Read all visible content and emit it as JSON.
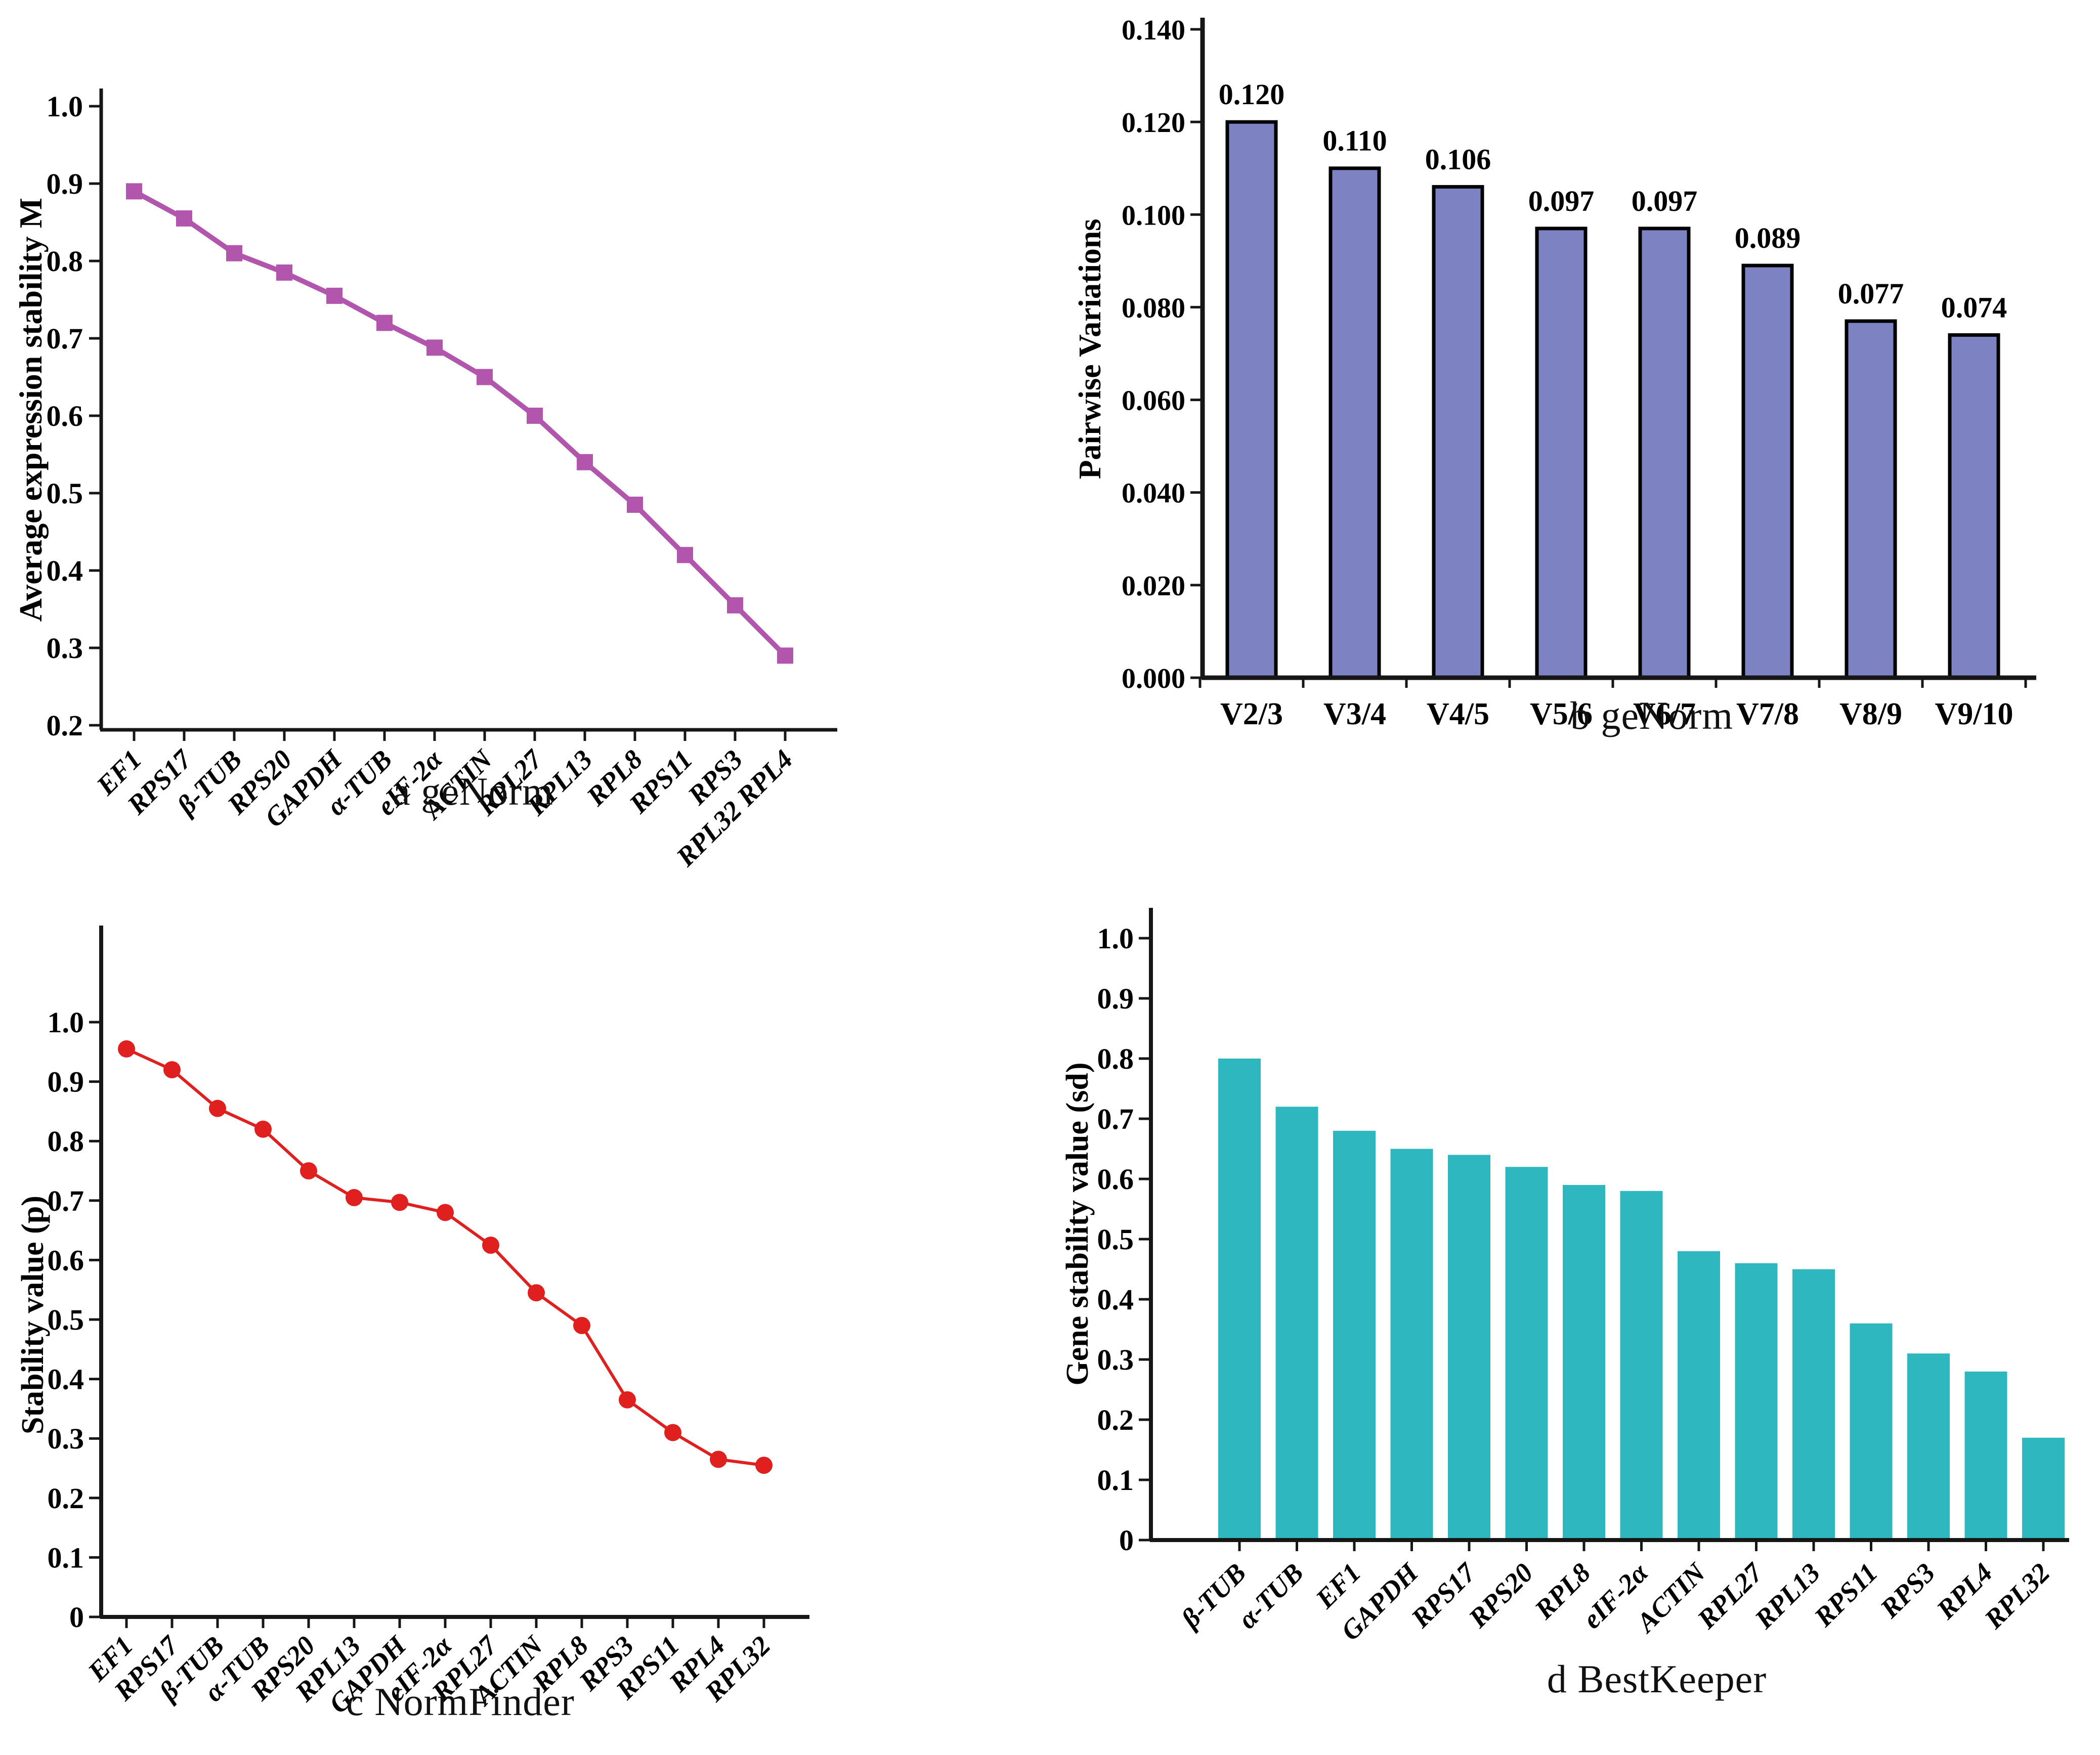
{
  "figure": {
    "background_color": "#ffffff",
    "text_color": "#000000"
  },
  "chart_data": [
    {
      "id": "a",
      "type": "line",
      "caption": "a geNorm",
      "ylabel": "Average expression stability M",
      "xlabel": "",
      "color": "#b156ac",
      "marker": "square",
      "ylim": [
        0.2,
        1.0
      ],
      "grid": false,
      "legend": "none",
      "ytick_values": [
        0.2,
        0.3,
        0.4,
        0.5,
        0.6,
        0.7,
        0.8,
        0.9,
        1.0
      ],
      "ytick_labels": [
        "0.2",
        "0.3",
        "0.4",
        "0.5",
        "0.6",
        "0.7",
        "0.8",
        "0.9",
        "1.0"
      ],
      "categories": [
        "EF1",
        "RPS17",
        "β-TUB",
        "RPS20",
        "GAPDH",
        "α-TUB",
        "eIF-2α",
        "ACTIN",
        "RPL27",
        "RPL13",
        "RPL8",
        "RPS11",
        "RPS3",
        "RPL32 RPL4"
      ],
      "values": [
        0.89,
        0.855,
        0.81,
        0.785,
        0.755,
        0.72,
        0.688,
        0.65,
        0.6,
        0.54,
        0.485,
        0.42,
        0.355,
        0.29
      ]
    },
    {
      "id": "b",
      "type": "bar",
      "caption": "b geNorm",
      "ylabel": "Pairwise Variations",
      "xlabel": "",
      "color": "#7d82c3",
      "bar_stroke": "#000000",
      "ylim": [
        0,
        0.14
      ],
      "grid": false,
      "legend": "none",
      "ytick_values": [
        0.0,
        0.02,
        0.04,
        0.06,
        0.08,
        0.1,
        0.12,
        0.14
      ],
      "ytick_labels": [
        "0.000",
        "0.020",
        "0.040",
        "0.060",
        "0.080",
        "0.100",
        "0.120",
        "0.140"
      ],
      "categories": [
        "V2/3",
        "V3/4",
        "V4/5",
        "V5/6",
        "V6/7",
        "V7/8",
        "V8/9",
        "V9/10"
      ],
      "values": [
        0.12,
        0.11,
        0.106,
        0.097,
        0.097,
        0.089,
        0.077,
        0.074
      ],
      "value_labels": [
        "0.120",
        "0.110",
        "0.106",
        "0.097",
        "0.097",
        "0.089",
        "0.077",
        "0.074"
      ]
    },
    {
      "id": "c",
      "type": "line",
      "caption": "c NormFinder",
      "ylabel": "Stability value (p)",
      "xlabel": "",
      "color": "#e01f1f",
      "marker": "circle",
      "ylim": [
        0,
        1.0
      ],
      "grid": false,
      "legend": "none",
      "ytick_values": [
        0,
        0.1,
        0.2,
        0.3,
        0.4,
        0.5,
        0.6,
        0.7,
        0.8,
        0.9,
        1.0
      ],
      "ytick_labels": [
        "0",
        "0.1",
        "0.2",
        "0.3",
        "0.4",
        "0.5",
        "0.6",
        "0.7",
        "0.8",
        "0.9",
        "1.0"
      ],
      "categories": [
        "EF1",
        "RPS17",
        "β-TUB",
        "α-TUB",
        "RPS20",
        "RPL13",
        "GAPDH",
        "eIF-2α",
        "RPL27",
        "ACTIN",
        "RPL8",
        "RPS3",
        "RPS11",
        "RPL4",
        "RPL32"
      ],
      "values": [
        0.955,
        0.92,
        0.855,
        0.82,
        0.75,
        0.705,
        0.697,
        0.68,
        0.625,
        0.545,
        0.49,
        0.365,
        0.31,
        0.265,
        0.255
      ]
    },
    {
      "id": "d",
      "type": "bar",
      "caption": "d BestKeeper",
      "ylabel": "Gene stability value (sd)",
      "xlabel": "",
      "color": "#2eb7bf",
      "bar_stroke": "none",
      "ylim": [
        0,
        1.0
      ],
      "grid": false,
      "legend": "none",
      "ytick_values": [
        0,
        0.1,
        0.2,
        0.3,
        0.4,
        0.5,
        0.6,
        0.7,
        0.8,
        0.9,
        1.0
      ],
      "ytick_labels": [
        "0",
        "0.1",
        "0.2",
        "0.3",
        "0.4",
        "0.5",
        "0.6",
        "0.7",
        "0.8",
        "0.9",
        "1.0"
      ],
      "categories": [
        "β-TUB",
        "α-TUB",
        "EF1",
        "GAPDH",
        "RPS17",
        "RPS20",
        "RPL8",
        "eIF-2α",
        "ACTIN",
        "RPL27",
        "RPL13",
        "RPS11",
        "RPS3",
        "RPL4",
        "RPL32"
      ],
      "values": [
        0.8,
        0.72,
        0.68,
        0.65,
        0.64,
        0.62,
        0.59,
        0.58,
        0.48,
        0.46,
        0.45,
        0.36,
        0.31,
        0.28,
        0.17
      ]
    }
  ]
}
